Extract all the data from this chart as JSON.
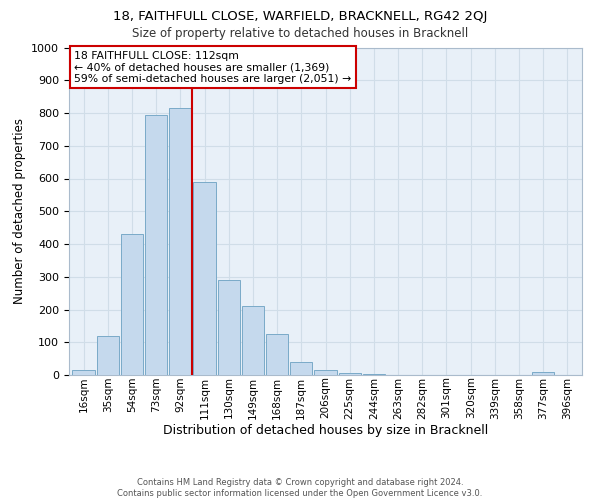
{
  "title1": "18, FAITHFULL CLOSE, WARFIELD, BRACKNELL, RG42 2QJ",
  "title2": "Size of property relative to detached houses in Bracknell",
  "xlabel": "Distribution of detached houses by size in Bracknell",
  "ylabel": "Number of detached properties",
  "footnote1": "Contains HM Land Registry data © Crown copyright and database right 2024.",
  "footnote2": "Contains public sector information licensed under the Open Government Licence v3.0.",
  "bar_labels": [
    "16sqm",
    "35sqm",
    "54sqm",
    "73sqm",
    "92sqm",
    "111sqm",
    "130sqm",
    "149sqm",
    "168sqm",
    "187sqm",
    "206sqm",
    "225sqm",
    "244sqm",
    "263sqm",
    "282sqm",
    "301sqm",
    "320sqm",
    "339sqm",
    "358sqm",
    "377sqm",
    "396sqm"
  ],
  "bar_values": [
    15,
    120,
    430,
    795,
    815,
    590,
    290,
    210,
    125,
    40,
    15,
    5,
    2,
    1,
    1,
    1,
    1,
    1,
    1,
    10,
    0
  ],
  "bar_color": "#c5d9ed",
  "bar_edge_color": "#7aaac8",
  "highlight_line_color": "#cc0000",
  "annotation_title": "18 FAITHFULL CLOSE: 112sqm",
  "annotation_line1": "← 40% of detached houses are smaller (1,369)",
  "annotation_line2": "59% of semi-detached houses are larger (2,051) →",
  "annotation_box_color": "#ffffff",
  "annotation_box_edge": "#cc0000",
  "ylim": [
    0,
    1000
  ],
  "yticks": [
    0,
    100,
    200,
    300,
    400,
    500,
    600,
    700,
    800,
    900,
    1000
  ],
  "grid_color": "#d0dde8",
  "bg_color": "#e8f0f8",
  "title1_fontsize": 9.5,
  "title2_fontsize": 8.5,
  "ylabel_fontsize": 8.5,
  "xlabel_fontsize": 9,
  "tick_fontsize": 7.5,
  "annotation_fontsize": 7.8,
  "footnote_fontsize": 6.0
}
